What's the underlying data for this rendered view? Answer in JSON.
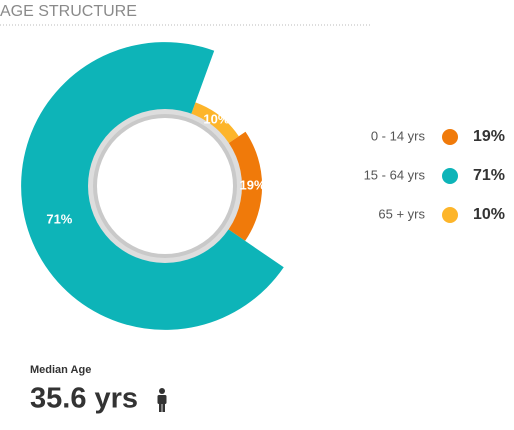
{
  "chart_data": {
    "type": "pie",
    "title": "AGE STRUCTURE",
    "categories": [
      "0 - 14 yrs",
      "15 - 64 yrs",
      "65 + yrs"
    ],
    "values": [
      19,
      71,
      10
    ],
    "value_labels": [
      "19%",
      "71%",
      "10%"
    ],
    "colors": [
      "#f07a0a",
      "#0db4b8",
      "#fdb52a"
    ]
  },
  "median_age_label": "Median Age",
  "median_age": "35.6 yrs"
}
